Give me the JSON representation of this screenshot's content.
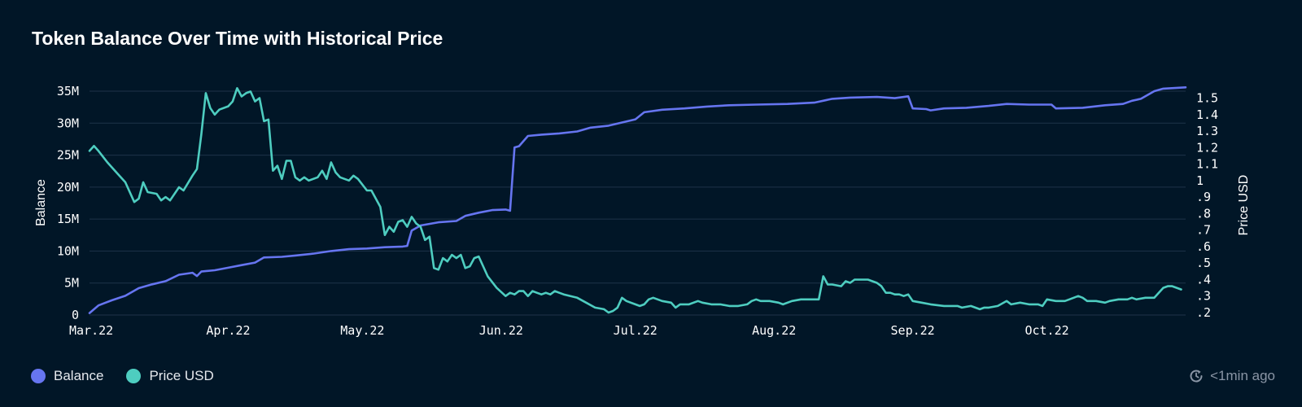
{
  "header": {
    "title": "Token Balance Over Time with Historical Price"
  },
  "legend": [
    {
      "label": "Balance",
      "color": "#6675f0"
    },
    {
      "label": "Price USD",
      "color": "#4ecdc0"
    }
  ],
  "footer": {
    "updated": "<1min ago",
    "icon": "refresh-clock-icon"
  },
  "chart_data": {
    "type": "line",
    "title": "Token Balance Over Time with Historical Price",
    "ylabel": "Balance",
    "y2label": "Price USD",
    "ylim": [
      0,
      35000000
    ],
    "y2lim": [
      0.2,
      1.5
    ],
    "x_ticks": [
      "Mar.22",
      "Apr.22",
      "May.22",
      "Jun.22",
      "Jul.22",
      "Aug.22",
      "Sep.22",
      "Oct.22"
    ],
    "y_ticks": [
      "0",
      "5M",
      "10M",
      "15M",
      "20M",
      "25M",
      "30M",
      "35M"
    ],
    "y2_ticks": [
      ".2",
      ".3",
      ".4",
      ".5",
      ".6",
      ".7",
      ".8",
      ".9",
      "1",
      "1.1",
      "1.2",
      "1.3",
      "1.4",
      "1.5"
    ],
    "grid": true,
    "legend_position": "bottom-left",
    "series": [
      {
        "name": "Balance",
        "color": "#6675f0",
        "axis": "left",
        "points": [
          [
            "2022-03-01",
            0.3
          ],
          [
            "2022-03-03",
            1.5
          ],
          [
            "2022-03-06",
            2.3
          ],
          [
            "2022-03-09",
            3.0
          ],
          [
            "2022-03-12",
            4.2
          ],
          [
            "2022-03-15",
            4.8
          ],
          [
            "2022-03-18",
            5.3
          ],
          [
            "2022-03-21",
            6.3
          ],
          [
            "2022-03-24",
            6.6
          ],
          [
            "2022-03-25",
            6.1
          ],
          [
            "2022-03-26",
            6.8
          ],
          [
            "2022-03-29",
            7.0
          ],
          [
            "2022-04-01",
            7.4
          ],
          [
            "2022-04-04",
            7.8
          ],
          [
            "2022-04-07",
            8.2
          ],
          [
            "2022-04-09",
            9.0
          ],
          [
            "2022-04-13",
            9.1
          ],
          [
            "2022-04-16",
            9.3
          ],
          [
            "2022-04-20",
            9.6
          ],
          [
            "2022-04-24",
            10.0
          ],
          [
            "2022-04-28",
            10.3
          ],
          [
            "2022-05-02",
            10.4
          ],
          [
            "2022-05-06",
            10.6
          ],
          [
            "2022-05-10",
            10.7
          ],
          [
            "2022-05-11",
            10.8
          ],
          [
            "2022-05-12",
            13.2
          ],
          [
            "2022-05-14",
            14.0
          ],
          [
            "2022-05-18",
            14.5
          ],
          [
            "2022-05-22",
            14.7
          ],
          [
            "2022-05-24",
            15.5
          ],
          [
            "2022-05-27",
            16.0
          ],
          [
            "2022-05-30",
            16.4
          ],
          [
            "2022-06-02",
            16.5
          ],
          [
            "2022-06-03",
            16.3
          ],
          [
            "2022-06-04",
            26.2
          ],
          [
            "2022-06-05",
            26.4
          ],
          [
            "2022-06-07",
            28.0
          ],
          [
            "2022-06-10",
            28.2
          ],
          [
            "2022-06-14",
            28.4
          ],
          [
            "2022-06-18",
            28.7
          ],
          [
            "2022-06-21",
            29.3
          ],
          [
            "2022-06-25",
            29.6
          ],
          [
            "2022-06-28",
            30.1
          ],
          [
            "2022-07-01",
            30.6
          ],
          [
            "2022-07-03",
            31.7
          ],
          [
            "2022-07-07",
            32.1
          ],
          [
            "2022-07-12",
            32.3
          ],
          [
            "2022-07-17",
            32.6
          ],
          [
            "2022-07-22",
            32.8
          ],
          [
            "2022-07-28",
            32.9
          ],
          [
            "2022-08-04",
            33.0
          ],
          [
            "2022-08-10",
            33.2
          ],
          [
            "2022-08-14",
            33.8
          ],
          [
            "2022-08-18",
            34.0
          ],
          [
            "2022-08-24",
            34.1
          ],
          [
            "2022-08-28",
            33.9
          ],
          [
            "2022-08-31",
            34.2
          ],
          [
            "2022-09-01",
            32.3
          ],
          [
            "2022-09-04",
            32.2
          ],
          [
            "2022-09-05",
            32.0
          ],
          [
            "2022-09-08",
            32.3
          ],
          [
            "2022-09-13",
            32.4
          ],
          [
            "2022-09-18",
            32.7
          ],
          [
            "2022-09-22",
            33.0
          ],
          [
            "2022-09-27",
            32.9
          ],
          [
            "2022-10-02",
            32.9
          ],
          [
            "2022-10-03",
            32.3
          ],
          [
            "2022-10-09",
            32.4
          ],
          [
            "2022-10-14",
            32.8
          ],
          [
            "2022-10-18",
            33.0
          ],
          [
            "2022-10-20",
            33.5
          ],
          [
            "2022-10-22",
            33.8
          ],
          [
            "2022-10-25",
            35.0
          ],
          [
            "2022-10-27",
            35.4
          ],
          [
            "2022-11-01",
            35.6
          ]
        ]
      },
      {
        "name": "Price USD",
        "color": "#4ecdc0",
        "axis": "right",
        "points": [
          [
            "2022-03-01",
            1.18
          ],
          [
            "2022-03-02",
            1.21
          ],
          [
            "2022-03-03",
            1.18
          ],
          [
            "2022-03-05",
            1.11
          ],
          [
            "2022-03-07",
            1.05
          ],
          [
            "2022-03-09",
            0.99
          ],
          [
            "2022-03-11",
            0.87
          ],
          [
            "2022-03-12",
            0.89
          ],
          [
            "2022-03-13",
            0.99
          ],
          [
            "2022-03-14",
            0.93
          ],
          [
            "2022-03-16",
            0.92
          ],
          [
            "2022-03-17",
            0.88
          ],
          [
            "2022-03-18",
            0.9
          ],
          [
            "2022-03-19",
            0.88
          ],
          [
            "2022-03-21",
            0.96
          ],
          [
            "2022-03-22",
            0.94
          ],
          [
            "2022-03-24",
            1.03
          ],
          [
            "2022-03-25",
            1.07
          ],
          [
            "2022-03-26",
            1.28
          ],
          [
            "2022-03-27",
            1.53
          ],
          [
            "2022-03-28",
            1.44
          ],
          [
            "2022-03-29",
            1.4
          ],
          [
            "2022-03-30",
            1.43
          ],
          [
            "2022-04-01",
            1.45
          ],
          [
            "2022-04-02",
            1.48
          ],
          [
            "2022-04-03",
            1.56
          ],
          [
            "2022-04-04",
            1.51
          ],
          [
            "2022-04-05",
            1.53
          ],
          [
            "2022-04-06",
            1.54
          ],
          [
            "2022-04-07",
            1.48
          ],
          [
            "2022-04-08",
            1.5
          ],
          [
            "2022-04-09",
            1.36
          ],
          [
            "2022-04-10",
            1.37
          ],
          [
            "2022-04-11",
            1.06
          ],
          [
            "2022-04-12",
            1.09
          ],
          [
            "2022-04-13",
            1.01
          ],
          [
            "2022-04-14",
            1.12
          ],
          [
            "2022-04-15",
            1.12
          ],
          [
            "2022-04-16",
            1.02
          ],
          [
            "2022-04-17",
            1.0
          ],
          [
            "2022-04-18",
            1.02
          ],
          [
            "2022-04-19",
            1.0
          ],
          [
            "2022-04-21",
            1.02
          ],
          [
            "2022-04-22",
            1.06
          ],
          [
            "2022-04-23",
            1.01
          ],
          [
            "2022-04-24",
            1.11
          ],
          [
            "2022-04-25",
            1.05
          ],
          [
            "2022-04-26",
            1.02
          ],
          [
            "2022-04-28",
            1.0
          ],
          [
            "2022-04-29",
            1.03
          ],
          [
            "2022-04-30",
            1.01
          ],
          [
            "2022-05-02",
            0.94
          ],
          [
            "2022-05-03",
            0.94
          ],
          [
            "2022-05-05",
            0.84
          ],
          [
            "2022-05-06",
            0.67
          ],
          [
            "2022-05-07",
            0.72
          ],
          [
            "2022-05-08",
            0.69
          ],
          [
            "2022-05-09",
            0.75
          ],
          [
            "2022-05-10",
            0.76
          ],
          [
            "2022-05-11",
            0.72
          ],
          [
            "2022-05-12",
            0.78
          ],
          [
            "2022-05-13",
            0.74
          ],
          [
            "2022-05-14",
            0.72
          ],
          [
            "2022-05-15",
            0.64
          ],
          [
            "2022-05-16",
            0.66
          ],
          [
            "2022-05-17",
            0.47
          ],
          [
            "2022-05-18",
            0.46
          ],
          [
            "2022-05-19",
            0.53
          ],
          [
            "2022-05-20",
            0.51
          ],
          [
            "2022-05-21",
            0.55
          ],
          [
            "2022-05-22",
            0.53
          ],
          [
            "2022-05-23",
            0.55
          ],
          [
            "2022-05-24",
            0.47
          ],
          [
            "2022-05-25",
            0.48
          ],
          [
            "2022-05-26",
            0.53
          ],
          [
            "2022-05-27",
            0.54
          ],
          [
            "2022-05-29",
            0.42
          ],
          [
            "2022-05-31",
            0.35
          ],
          [
            "2022-06-02",
            0.3
          ],
          [
            "2022-06-03",
            0.32
          ],
          [
            "2022-06-04",
            0.31
          ],
          [
            "2022-06-05",
            0.33
          ],
          [
            "2022-06-06",
            0.33
          ],
          [
            "2022-06-07",
            0.3
          ],
          [
            "2022-06-08",
            0.33
          ],
          [
            "2022-06-09",
            0.32
          ],
          [
            "2022-06-10",
            0.31
          ],
          [
            "2022-06-11",
            0.32
          ],
          [
            "2022-06-12",
            0.31
          ],
          [
            "2022-06-13",
            0.33
          ],
          [
            "2022-06-14",
            0.32
          ],
          [
            "2022-06-15",
            0.31
          ],
          [
            "2022-06-18",
            0.29
          ],
          [
            "2022-06-20",
            0.26
          ],
          [
            "2022-06-22",
            0.23
          ],
          [
            "2022-06-24",
            0.22
          ],
          [
            "2022-06-25",
            0.2
          ],
          [
            "2022-06-26",
            0.21
          ],
          [
            "2022-06-27",
            0.23
          ],
          [
            "2022-06-28",
            0.29
          ],
          [
            "2022-06-29",
            0.27
          ],
          [
            "2022-07-01",
            0.25
          ],
          [
            "2022-07-02",
            0.24
          ],
          [
            "2022-07-03",
            0.25
          ],
          [
            "2022-07-04",
            0.28
          ],
          [
            "2022-07-05",
            0.29
          ],
          [
            "2022-07-07",
            0.27
          ],
          [
            "2022-07-09",
            0.26
          ],
          [
            "2022-07-10",
            0.23
          ],
          [
            "2022-07-11",
            0.25
          ],
          [
            "2022-07-13",
            0.25
          ],
          [
            "2022-07-15",
            0.27
          ],
          [
            "2022-07-16",
            0.26
          ],
          [
            "2022-07-18",
            0.25
          ],
          [
            "2022-07-20",
            0.25
          ],
          [
            "2022-07-22",
            0.24
          ],
          [
            "2022-07-24",
            0.24
          ],
          [
            "2022-07-26",
            0.25
          ],
          [
            "2022-07-27",
            0.27
          ],
          [
            "2022-07-28",
            0.28
          ],
          [
            "2022-07-29",
            0.27
          ],
          [
            "2022-07-31",
            0.27
          ],
          [
            "2022-08-02",
            0.26
          ],
          [
            "2022-08-03",
            0.25
          ],
          [
            "2022-08-05",
            0.27
          ],
          [
            "2022-08-07",
            0.28
          ],
          [
            "2022-08-09",
            0.28
          ],
          [
            "2022-08-11",
            0.28
          ],
          [
            "2022-08-12",
            0.42
          ],
          [
            "2022-08-13",
            0.37
          ],
          [
            "2022-08-14",
            0.37
          ],
          [
            "2022-08-16",
            0.36
          ],
          [
            "2022-08-17",
            0.39
          ],
          [
            "2022-08-18",
            0.38
          ],
          [
            "2022-08-19",
            0.4
          ],
          [
            "2022-08-20",
            0.4
          ],
          [
            "2022-08-22",
            0.4
          ],
          [
            "2022-08-23",
            0.39
          ],
          [
            "2022-08-24",
            0.38
          ],
          [
            "2022-08-25",
            0.36
          ],
          [
            "2022-08-26",
            0.32
          ],
          [
            "2022-08-27",
            0.32
          ],
          [
            "2022-08-28",
            0.31
          ],
          [
            "2022-08-29",
            0.31
          ],
          [
            "2022-08-30",
            0.3
          ],
          [
            "2022-08-31",
            0.31
          ],
          [
            "2022-09-01",
            0.27
          ],
          [
            "2022-09-03",
            0.26
          ],
          [
            "2022-09-05",
            0.25
          ],
          [
            "2022-09-08",
            0.24
          ],
          [
            "2022-09-11",
            0.24
          ],
          [
            "2022-09-12",
            0.23
          ],
          [
            "2022-09-14",
            0.24
          ],
          [
            "2022-09-16",
            0.22
          ],
          [
            "2022-09-17",
            0.23
          ],
          [
            "2022-09-18",
            0.23
          ],
          [
            "2022-09-20",
            0.24
          ],
          [
            "2022-09-22",
            0.27
          ],
          [
            "2022-09-23",
            0.25
          ],
          [
            "2022-09-25",
            0.26
          ],
          [
            "2022-09-27",
            0.25
          ],
          [
            "2022-09-29",
            0.25
          ],
          [
            "2022-09-30",
            0.24
          ],
          [
            "2022-10-01",
            0.28
          ],
          [
            "2022-10-03",
            0.27
          ],
          [
            "2022-10-05",
            0.27
          ],
          [
            "2022-10-06",
            0.28
          ],
          [
            "2022-10-08",
            0.3
          ],
          [
            "2022-10-09",
            0.29
          ],
          [
            "2022-10-10",
            0.27
          ],
          [
            "2022-10-12",
            0.27
          ],
          [
            "2022-10-14",
            0.26
          ],
          [
            "2022-10-15",
            0.27
          ],
          [
            "2022-10-17",
            0.28
          ],
          [
            "2022-10-19",
            0.28
          ],
          [
            "2022-10-20",
            0.29
          ],
          [
            "2022-10-21",
            0.28
          ],
          [
            "2022-10-23",
            0.29
          ],
          [
            "2022-10-25",
            0.29
          ],
          [
            "2022-10-27",
            0.35
          ],
          [
            "2022-10-28",
            0.36
          ],
          [
            "2022-10-29",
            0.36
          ],
          [
            "2022-10-31",
            0.34
          ]
        ]
      }
    ]
  }
}
